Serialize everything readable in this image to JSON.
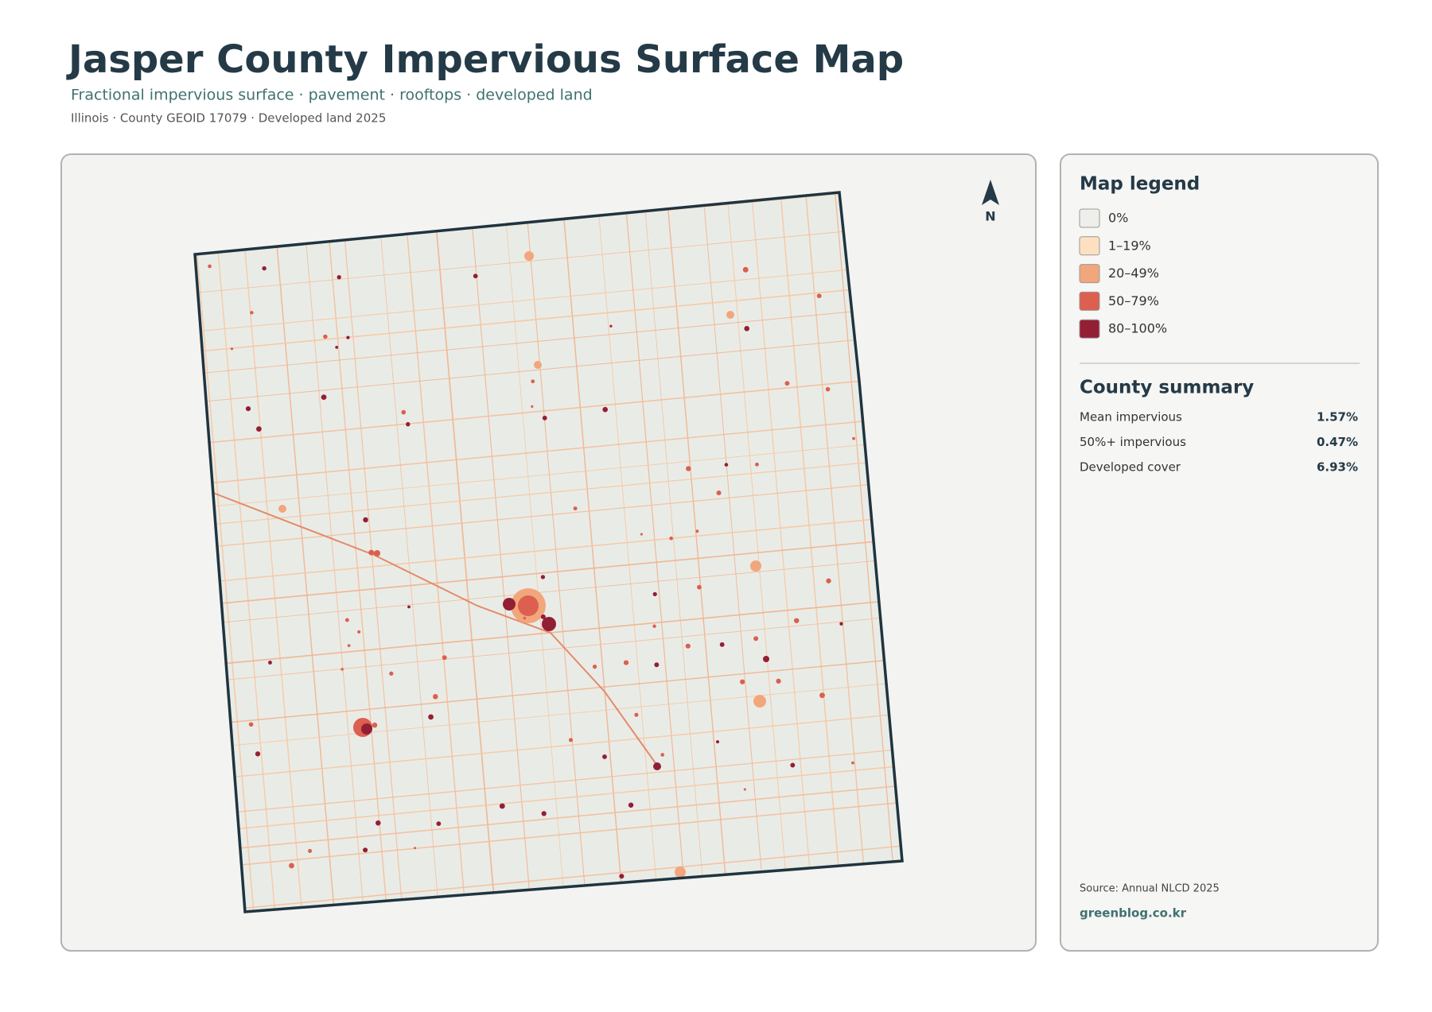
{
  "header": {
    "title": "Jasper County Impervious Surface Map",
    "subtitle": "Fractional impervious surface · pavement · rooftops · developed land",
    "meta": "Illinois · County GEOID 17079 · Developed land 2025"
  },
  "map": {
    "north_label": "N"
  },
  "legend": {
    "title": "Map legend",
    "items": [
      {
        "label": "0%",
        "color": "#eeeeea"
      },
      {
        "label": "1–19%",
        "color": "#fde0c0"
      },
      {
        "label": "20–49%",
        "color": "#f2a67c"
      },
      {
        "label": "50–79%",
        "color": "#dc5f4f"
      },
      {
        "label": "80–100%",
        "color": "#931f35"
      }
    ]
  },
  "summary": {
    "title": "County summary",
    "rows": [
      {
        "label": "Mean impervious",
        "value": "1.57%"
      },
      {
        "label": "50%+ impervious",
        "value": "0.47%"
      },
      {
        "label": "Developed cover",
        "value": "6.93%"
      }
    ]
  },
  "source": "Source: Annual NLCD 2025",
  "credit": "greenblog.co.kr"
}
